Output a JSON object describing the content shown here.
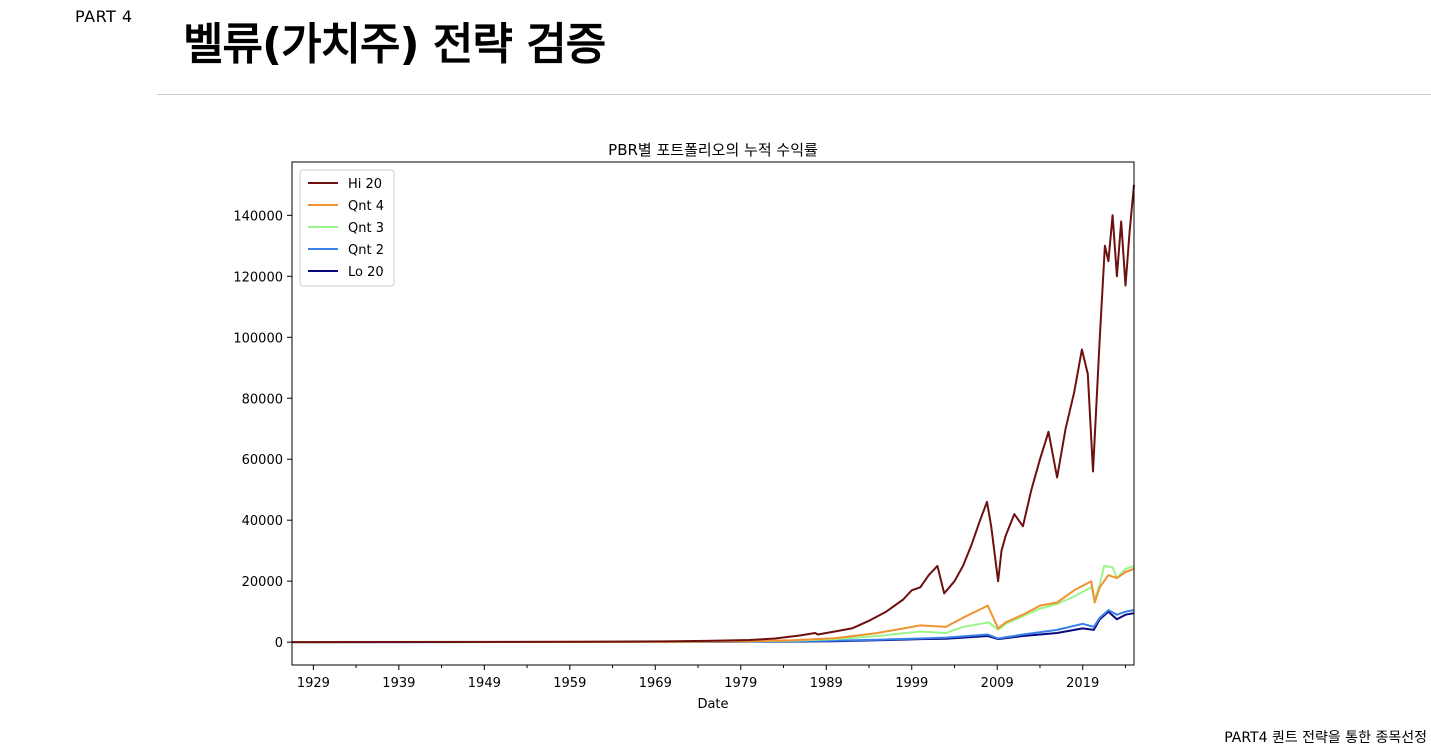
{
  "header": {
    "part_label": "PART 4",
    "title": "벨류(가치주) 전략 검증"
  },
  "footer": {
    "text": "PART4 퀀트 전략을 통한 종목선정"
  },
  "colors": {
    "hi20": "#6e1010",
    "qnt4": "#ef9332",
    "qnt3": "#9cf58a",
    "qnt2": "#3a80ea",
    "lo20": "#0a0a80"
  },
  "chart_data": {
    "type": "line",
    "title": "PBR별 포트폴리오의 누적 수익률",
    "xlabel": "Date",
    "ylabel": "",
    "xlim": [
      1926.5,
      2025.0
    ],
    "ylim": [
      -7500,
      157500
    ],
    "x_ticks": [
      "1929",
      "1939",
      "1949",
      "1959",
      "1969",
      "1979",
      "1989",
      "1999",
      "2009",
      "2019"
    ],
    "x_tick_values": [
      1929,
      1939,
      1949,
      1959,
      1969,
      1979,
      1989,
      1999,
      2009,
      2019
    ],
    "y_ticks": [
      "0",
      "20000",
      "40000",
      "60000",
      "80000",
      "100000",
      "120000",
      "140000"
    ],
    "y_tick_values": [
      0,
      20000,
      40000,
      60000,
      80000,
      100000,
      120000,
      140000
    ],
    "legend_position": "top-left",
    "grid": false,
    "series": [
      {
        "name": "Hi 20",
        "color_key": "hi20",
        "x": [
          1926.5,
          1960,
          1970,
          1975,
          1980,
          1983,
          1986,
          1987.7,
          1988,
          1990,
          1992,
          1994,
          1996,
          1998,
          1999,
          2000,
          2001,
          2002,
          2002.8,
          2004,
          2005,
          2006,
          2007,
          2007.8,
          2008.3,
          2009.1,
          2009.5,
          2010,
          2011,
          2012,
          2013,
          2014,
          2015,
          2016,
          2017,
          2018,
          2018.9,
          2019.6,
          2020.2,
          2021,
          2021.6,
          2022,
          2022.5,
          2023,
          2023.5,
          2024,
          2024.5,
          2025
        ],
        "y": [
          0,
          100,
          250,
          400,
          700,
          1200,
          2200,
          3000,
          2500,
          3500,
          4500,
          7000,
          10000,
          14000,
          17000,
          18000,
          22000,
          25000,
          16000,
          20000,
          25000,
          32000,
          40000,
          46000,
          38000,
          20000,
          30000,
          35000,
          42000,
          38000,
          50000,
          60000,
          69000,
          54000,
          70000,
          82000,
          96000,
          88000,
          56000,
          100000,
          130000,
          125000,
          140000,
          120000,
          138000,
          117000,
          135000,
          150000
        ]
      },
      {
        "name": "Qnt 4",
        "color_key": "qnt4",
        "x": [
          1926.5,
          1970,
          1980,
          1985,
          1990,
          1995,
          2000,
          2003,
          2005,
          2007.9,
          2009.1,
          2010,
          2012,
          2014,
          2016,
          2018,
          2020,
          2020.4,
          2021,
          2022,
          2023,
          2024,
          2025
        ],
        "y": [
          0,
          80,
          300,
          600,
          1300,
          3000,
          5500,
          5000,
          8000,
          12000,
          4500,
          6500,
          9000,
          12000,
          13000,
          17000,
          20000,
          13000,
          18000,
          22000,
          21000,
          23000,
          24000
        ]
      },
      {
        "name": "Qnt 3",
        "color_key": "qnt3",
        "x": [
          1926.5,
          1970,
          1980,
          1985,
          1990,
          1995,
          2000,
          2003,
          2005,
          2008,
          2009.1,
          2010,
          2012,
          2014,
          2016,
          2018,
          2020,
          2020.4,
          2021,
          2021.5,
          2022.5,
          2023,
          2024,
          2025
        ],
        "y": [
          0,
          70,
          250,
          500,
          1000,
          2000,
          3500,
          3000,
          5000,
          6500,
          4000,
          6000,
          8500,
          11000,
          12500,
          15000,
          18000,
          14000,
          19000,
          25000,
          24500,
          21000,
          24000,
          25000
        ]
      },
      {
        "name": "Qnt 2",
        "color_key": "qnt2",
        "x": [
          1926.5,
          1970,
          1980,
          1990,
          1995,
          2000,
          2003,
          2007.9,
          2009.1,
          2012,
          2016,
          2019,
          2020.3,
          2021,
          2022,
          2023,
          2024,
          2025
        ],
        "y": [
          0,
          50,
          150,
          500,
          800,
          1200,
          1500,
          2500,
          1200,
          2500,
          4000,
          6000,
          5000,
          8000,
          10500,
          9000,
          10000,
          10500
        ]
      },
      {
        "name": "Lo 20",
        "color_key": "lo20",
        "x": [
          1926.5,
          1970,
          1980,
          1990,
          1995,
          2000,
          2003,
          2007.9,
          2009.1,
          2012,
          2016,
          2019,
          2020.3,
          2021,
          2022,
          2023,
          2024,
          2025
        ],
        "y": [
          0,
          40,
          100,
          300,
          600,
          1000,
          1100,
          2000,
          1000,
          2000,
          3000,
          4500,
          4000,
          7500,
          10000,
          7500,
          9000,
          9500
        ]
      }
    ]
  }
}
